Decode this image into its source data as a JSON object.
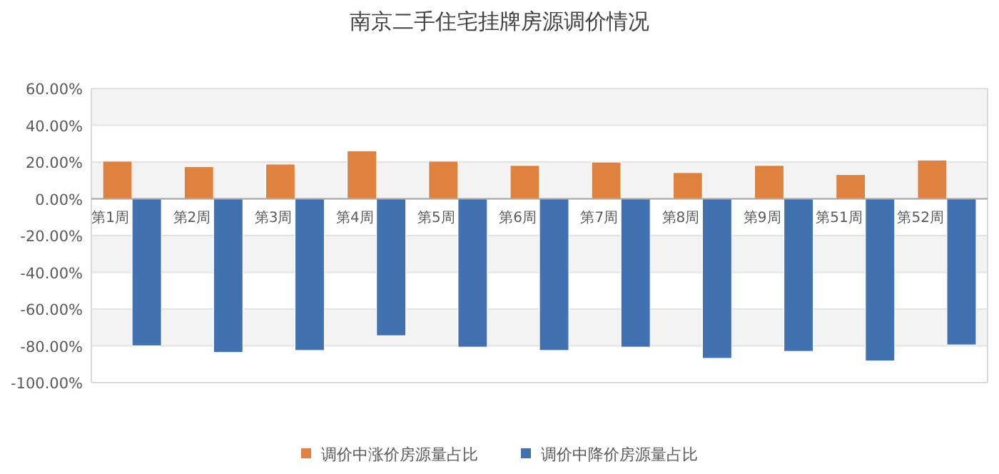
{
  "chart_data": {
    "type": "bar",
    "title": "南京二手住宅挂牌房源调价情况",
    "categories": [
      "第1周",
      "第2周",
      "第3周",
      "第4周",
      "第5周",
      "第6周",
      "第7周",
      "第8周",
      "第9周",
      "第51周",
      "第52周"
    ],
    "series": [
      {
        "name": "调价中涨价房源量占比",
        "color": "#e0823f",
        "values": [
          20.5,
          17.5,
          18.9,
          26.1,
          20.5,
          18.2,
          20,
          14.3,
          18.2,
          13.2,
          21.1
        ]
      },
      {
        "name": "调价中降价房源量占比",
        "color": "#4171b0",
        "values": [
          -80,
          -83.6,
          -82.5,
          -74.5,
          -80.7,
          -82.5,
          -80.7,
          -86.8,
          -83,
          -88.2,
          -79.5
        ]
      }
    ],
    "ylim": [
      -100,
      60
    ],
    "yticks": [
      {
        "value": -100,
        "label": "-100.00%"
      },
      {
        "value": -80,
        "label": "-80.00%"
      },
      {
        "value": -60,
        "label": "-60.00%"
      },
      {
        "value": -40,
        "label": "-40.00%"
      },
      {
        "value": -20,
        "label": "-20.00%"
      },
      {
        "value": 0,
        "label": "0.00%"
      },
      {
        "value": 20,
        "label": "20.00%"
      },
      {
        "value": 40,
        "label": "40.00%"
      },
      {
        "value": 60,
        "label": "60.00%"
      }
    ],
    "grid": "y",
    "legend": "bottom"
  }
}
